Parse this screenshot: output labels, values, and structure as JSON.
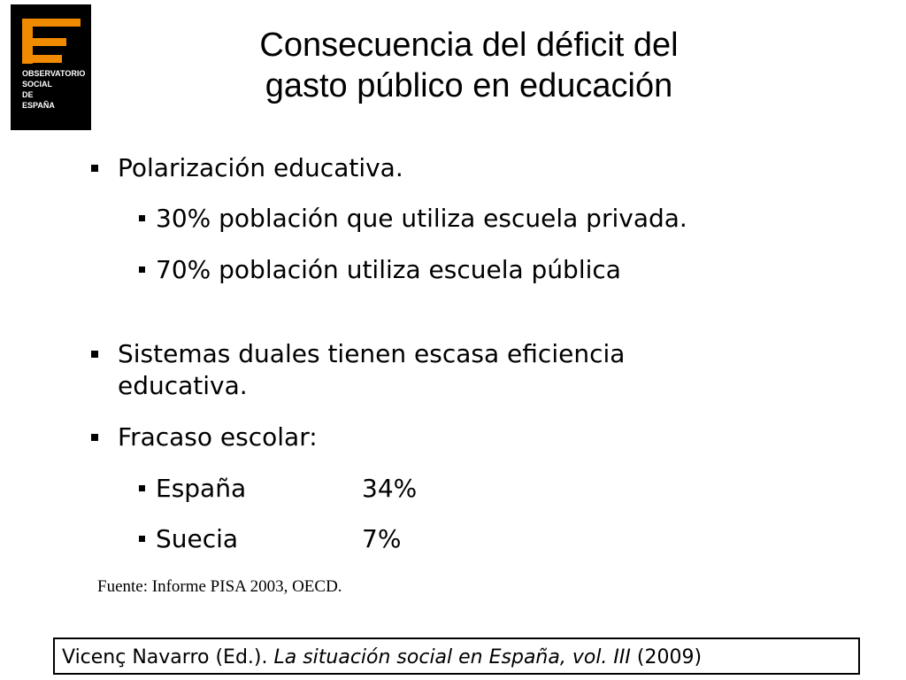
{
  "logo": {
    "lines": [
      "OBSERVATORIO",
      "SOCIAL",
      "DE",
      "ESPAÑA"
    ]
  },
  "title": {
    "lines": [
      "Consecuencia del déficit del",
      "gasto público en educación"
    ]
  },
  "bullets": [
    {
      "text": "Polarización educativa."
    },
    {
      "text": "30% población que utiliza escuela privada."
    },
    {
      "text": "70% población utiliza escuela pública"
    },
    {
      "text": "Sistemas duales tienen escasa eficiencia educativa."
    },
    {
      "text": "Fracaso escolar:"
    },
    {
      "label": "España",
      "value": "34%"
    },
    {
      "label": "Suecia",
      "value": "7%"
    }
  ],
  "source": "Fuente: Informe PISA 2003, OECD.",
  "citation": {
    "author": "Vicenç Navarro (Ed.). ",
    "work": "La situación social en España, vol. III",
    "year": " (2009)"
  }
}
